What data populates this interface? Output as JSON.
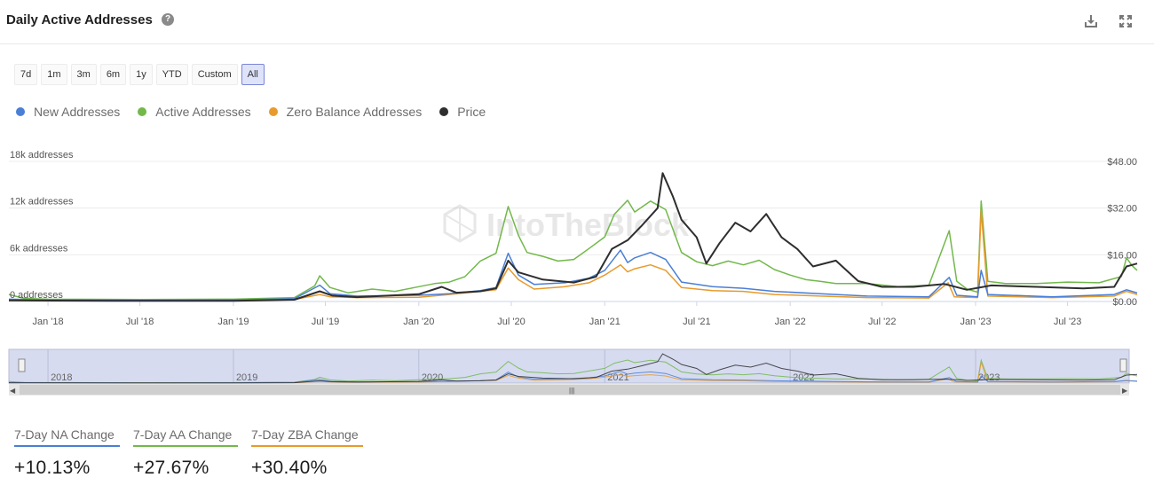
{
  "header": {
    "title": "Daily Active Addresses",
    "help_icon": "question-circle-icon",
    "download_icon": "download-icon",
    "fullscreen_icon": "expand-icon"
  },
  "ranges": [
    "7d",
    "1m",
    "3m",
    "6m",
    "1y",
    "YTD",
    "Custom",
    "All"
  ],
  "active_range": "All",
  "legend": [
    {
      "label": "New Addresses",
      "color": "#4a7fd6"
    },
    {
      "label": "Active Addresses",
      "color": "#72b84b"
    },
    {
      "label": "Zero Balance Addresses",
      "color": "#e89a2c"
    },
    {
      "label": "Price",
      "color": "#2e2e2e"
    }
  ],
  "watermark": "IntoTheBlock",
  "changes": [
    {
      "label": "7-Day NA Change",
      "value": "+10.13%",
      "color": "#4a7fd6"
    },
    {
      "label": "7-Day AA Change",
      "value": "+27.67%",
      "color": "#72b84b"
    },
    {
      "label": "7-Day ZBA Change",
      "value": "+30.40%",
      "color": "#e89a2c"
    }
  ],
  "chart_data": {
    "type": "line",
    "x_range": [
      "2017-10-16",
      "2023-11-15"
    ],
    "x_tick_labels": [
      "Jan '18",
      "Jul '18",
      "Jan '19",
      "Jul '19",
      "Jan '20",
      "Jul '20",
      "Jan '21",
      "Jul '21",
      "Jan '22",
      "Jul '22",
      "Jan '23",
      "Jul '23"
    ],
    "y_left_ticks": [
      "0 addresses",
      "6k addresses",
      "12k addresses",
      "18k addresses"
    ],
    "y_left_range": [
      0,
      18000
    ],
    "y_right_ticks": [
      "$0.00",
      "$16.00",
      "$32.00",
      "$48.00"
    ],
    "y_right_range": [
      0,
      48
    ],
    "navigator_years": [
      "2018",
      "2019",
      "2020",
      "2021",
      "2022",
      "2023"
    ],
    "series": [
      {
        "name": "Active Addresses",
        "axis": "left",
        "color": "#72b84b",
        "points": [
          [
            "2017-10-16",
            900
          ],
          [
            "2017-11-15",
            400
          ],
          [
            "2018-01-01",
            300
          ],
          [
            "2018-07-01",
            250
          ],
          [
            "2019-01-01",
            300
          ],
          [
            "2019-05-01",
            500
          ],
          [
            "2019-06-10",
            2000
          ],
          [
            "2019-06-20",
            3300
          ],
          [
            "2019-07-10",
            1800
          ],
          [
            "2019-08-15",
            1100
          ],
          [
            "2019-10-01",
            1600
          ],
          [
            "2019-11-15",
            1300
          ],
          [
            "2020-01-01",
            1900
          ],
          [
            "2020-02-01",
            2300
          ],
          [
            "2020-03-01",
            2500
          ],
          [
            "2020-04-01",
            3200
          ],
          [
            "2020-05-01",
            5200
          ],
          [
            "2020-06-01",
            6200
          ],
          [
            "2020-06-25",
            12200
          ],
          [
            "2020-07-15",
            8500
          ],
          [
            "2020-08-01",
            6300
          ],
          [
            "2020-09-01",
            5800
          ],
          [
            "2020-10-01",
            5200
          ],
          [
            "2020-11-01",
            5400
          ],
          [
            "2020-12-01",
            6800
          ],
          [
            "2021-01-01",
            8300
          ],
          [
            "2021-01-20",
            11200
          ],
          [
            "2021-02-15",
            13000
          ],
          [
            "2021-03-01",
            11500
          ],
          [
            "2021-04-01",
            12900
          ],
          [
            "2021-05-01",
            11800
          ],
          [
            "2021-06-01",
            6300
          ],
          [
            "2021-07-01",
            5100
          ],
          [
            "2021-08-01",
            4600
          ],
          [
            "2021-09-01",
            5200
          ],
          [
            "2021-10-01",
            4700
          ],
          [
            "2021-11-01",
            5300
          ],
          [
            "2021-12-01",
            4100
          ],
          [
            "2022-01-01",
            3400
          ],
          [
            "2022-02-01",
            2800
          ],
          [
            "2022-03-01",
            2600
          ],
          [
            "2022-04-01",
            2300
          ],
          [
            "2022-06-01",
            2300
          ],
          [
            "2022-08-01",
            1900
          ],
          [
            "2022-10-01",
            2100
          ],
          [
            "2022-11-10",
            9100
          ],
          [
            "2022-11-25",
            2600
          ],
          [
            "2022-12-15",
            1600
          ],
          [
            "2023-01-05",
            1200
          ],
          [
            "2023-01-12",
            12900
          ],
          [
            "2023-01-25",
            2600
          ],
          [
            "2023-03-01",
            2300
          ],
          [
            "2023-05-01",
            2300
          ],
          [
            "2023-07-01",
            2500
          ],
          [
            "2023-09-01",
            2400
          ],
          [
            "2023-10-15",
            3200
          ],
          [
            "2023-10-25",
            5600
          ],
          [
            "2023-11-05",
            4600
          ],
          [
            "2023-11-15",
            4000
          ]
        ]
      },
      {
        "name": "New Addresses",
        "axis": "left",
        "color": "#4a7fd6",
        "points": [
          [
            "2017-10-16",
            300
          ],
          [
            "2018-01-01",
            200
          ],
          [
            "2018-07-01",
            150
          ],
          [
            "2019-01-01",
            200
          ],
          [
            "2019-05-01",
            350
          ],
          [
            "2019-06-20",
            2100
          ],
          [
            "2019-07-10",
            1000
          ],
          [
            "2019-09-01",
            700
          ],
          [
            "2020-01-01",
            800
          ],
          [
            "2020-03-01",
            1000
          ],
          [
            "2020-05-01",
            1400
          ],
          [
            "2020-06-01",
            1800
          ],
          [
            "2020-06-25",
            6200
          ],
          [
            "2020-07-15",
            3400
          ],
          [
            "2020-08-15",
            2200
          ],
          [
            "2020-10-15",
            2400
          ],
          [
            "2020-12-01",
            3000
          ],
          [
            "2021-01-01",
            4000
          ],
          [
            "2021-02-01",
            6600
          ],
          [
            "2021-02-15",
            5000
          ],
          [
            "2021-03-01",
            5600
          ],
          [
            "2021-04-01",
            6300
          ],
          [
            "2021-05-01",
            5400
          ],
          [
            "2021-06-01",
            2500
          ],
          [
            "2021-08-01",
            1900
          ],
          [
            "2021-10-01",
            1700
          ],
          [
            "2021-12-01",
            1300
          ],
          [
            "2022-03-01",
            1000
          ],
          [
            "2022-06-01",
            700
          ],
          [
            "2022-10-01",
            600
          ],
          [
            "2022-11-10",
            3100
          ],
          [
            "2022-11-25",
            800
          ],
          [
            "2023-01-05",
            600
          ],
          [
            "2023-01-12",
            4000
          ],
          [
            "2023-01-25",
            900
          ],
          [
            "2023-06-01",
            600
          ],
          [
            "2023-10-01",
            900
          ],
          [
            "2023-10-25",
            1500
          ],
          [
            "2023-11-15",
            1100
          ]
        ]
      },
      {
        "name": "Zero Balance Addresses",
        "axis": "left",
        "color": "#e89a2c",
        "points": [
          [
            "2017-10-16",
            200
          ],
          [
            "2018-01-01",
            150
          ],
          [
            "2018-07-01",
            100
          ],
          [
            "2019-01-01",
            150
          ],
          [
            "2019-05-01",
            250
          ],
          [
            "2019-06-20",
            900
          ],
          [
            "2019-07-10",
            600
          ],
          [
            "2019-09-01",
            500
          ],
          [
            "2020-01-01",
            550
          ],
          [
            "2020-03-01",
            900
          ],
          [
            "2020-05-01",
            1300
          ],
          [
            "2020-06-01",
            1500
          ],
          [
            "2020-06-25",
            4300
          ],
          [
            "2020-07-15",
            2800
          ],
          [
            "2020-08-15",
            1600
          ],
          [
            "2020-10-15",
            1900
          ],
          [
            "2020-12-01",
            2400
          ],
          [
            "2021-01-01",
            3400
          ],
          [
            "2021-02-01",
            4700
          ],
          [
            "2021-02-15",
            3800
          ],
          [
            "2021-03-01",
            4200
          ],
          [
            "2021-04-01",
            4700
          ],
          [
            "2021-05-01",
            4000
          ],
          [
            "2021-06-01",
            1800
          ],
          [
            "2021-08-01",
            1400
          ],
          [
            "2021-10-01",
            1300
          ],
          [
            "2021-12-01",
            900
          ],
          [
            "2022-03-01",
            700
          ],
          [
            "2022-06-01",
            500
          ],
          [
            "2022-10-01",
            450
          ],
          [
            "2022-11-08",
            2400
          ],
          [
            "2022-11-20",
            600
          ],
          [
            "2023-01-05",
            500
          ],
          [
            "2023-01-12",
            11700
          ],
          [
            "2023-01-25",
            700
          ],
          [
            "2023-06-01",
            500
          ],
          [
            "2023-10-01",
            700
          ],
          [
            "2023-10-25",
            1300
          ],
          [
            "2023-11-15",
            900
          ]
        ]
      },
      {
        "name": "Price",
        "axis": "right",
        "color": "#2e2e2e",
        "points": [
          [
            "2017-10-16",
            0.4
          ],
          [
            "2018-01-01",
            0.3
          ],
          [
            "2018-07-01",
            0.2
          ],
          [
            "2019-01-01",
            0.2
          ],
          [
            "2019-05-01",
            0.6
          ],
          [
            "2019-06-20",
            3.5
          ],
          [
            "2019-07-15",
            2.0
          ],
          [
            "2019-09-01",
            1.5
          ],
          [
            "2019-11-01",
            2.0
          ],
          [
            "2020-01-01",
            2.5
          ],
          [
            "2020-02-15",
            5.0
          ],
          [
            "2020-03-15",
            3.0
          ],
          [
            "2020-05-01",
            3.5
          ],
          [
            "2020-06-01",
            4.5
          ],
          [
            "2020-06-25",
            14.0
          ],
          [
            "2020-07-15",
            10.0
          ],
          [
            "2020-09-01",
            7.5
          ],
          [
            "2020-11-01",
            6.5
          ],
          [
            "2020-12-15",
            8.5
          ],
          [
            "2021-01-15",
            18.0
          ],
          [
            "2021-02-15",
            21.0
          ],
          [
            "2021-03-15",
            26.0
          ],
          [
            "2021-04-15",
            32.0
          ],
          [
            "2021-04-25",
            44.0
          ],
          [
            "2021-05-15",
            36.0
          ],
          [
            "2021-06-01",
            28.0
          ],
          [
            "2021-07-01",
            22.0
          ],
          [
            "2021-07-20",
            13.0
          ],
          [
            "2021-08-15",
            20.0
          ],
          [
            "2021-09-15",
            27.0
          ],
          [
            "2021-10-15",
            24.0
          ],
          [
            "2021-11-15",
            30.0
          ],
          [
            "2021-12-15",
            22.0
          ],
          [
            "2022-01-15",
            18.0
          ],
          [
            "2022-02-15",
            12.0
          ],
          [
            "2022-04-01",
            14.0
          ],
          [
            "2022-05-15",
            7.0
          ],
          [
            "2022-07-01",
            5.0
          ],
          [
            "2022-09-01",
            5.0
          ],
          [
            "2022-11-01",
            6.0
          ],
          [
            "2022-12-15",
            4.0
          ],
          [
            "2023-02-01",
            5.5
          ],
          [
            "2023-05-01",
            5.0
          ],
          [
            "2023-08-01",
            4.5
          ],
          [
            "2023-10-01",
            5.0
          ],
          [
            "2023-10-25",
            12.0
          ],
          [
            "2023-11-15",
            13.0
          ]
        ]
      }
    ]
  }
}
